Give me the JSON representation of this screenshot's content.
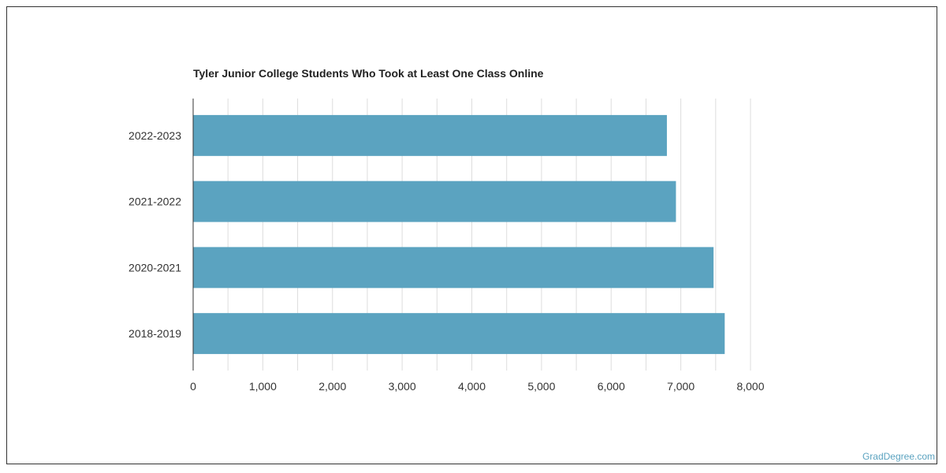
{
  "chart_data": {
    "type": "bar",
    "orientation": "horizontal",
    "title": "Tyler Junior College Students Who Took at Least One Class Online",
    "categories": [
      "2022-2023",
      "2021-2022",
      "2020-2021",
      "2018-2019"
    ],
    "values": [
      6800,
      6930,
      7470,
      7630
    ],
    "xlim": [
      0,
      8000
    ],
    "x_ticks": [
      0,
      1000,
      2000,
      3000,
      4000,
      5000,
      6000,
      7000,
      8000
    ],
    "x_tick_labels": [
      "0",
      "1,000",
      "2,000",
      "3,000",
      "4,000",
      "5,000",
      "6,000",
      "7,000",
      "8,000"
    ],
    "grid": true,
    "bar_color": "#5ba3c0"
  },
  "watermark": "GradDegree.com"
}
